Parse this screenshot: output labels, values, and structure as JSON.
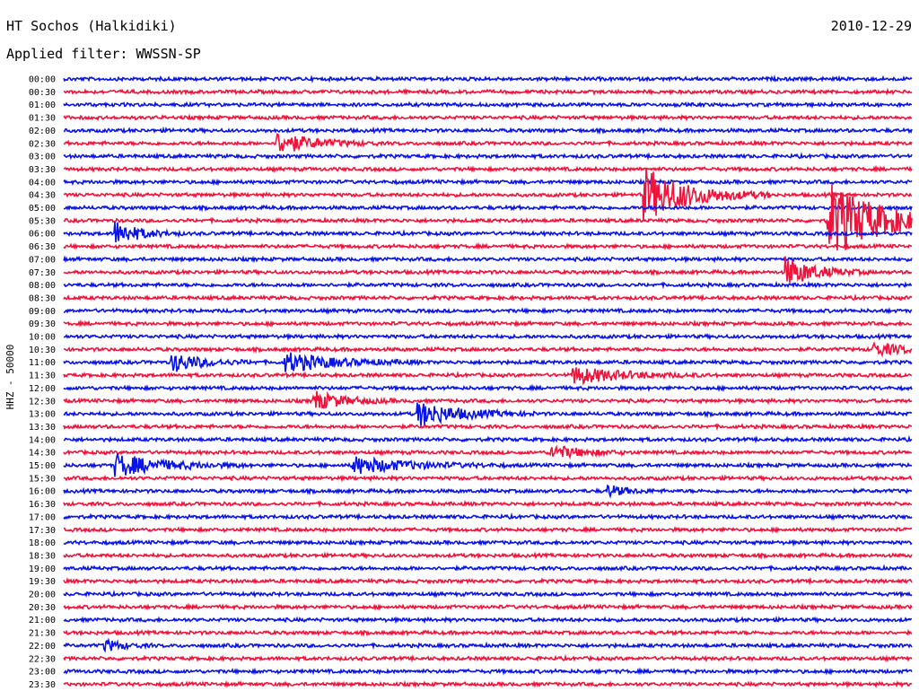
{
  "header": {
    "station": "HT Sochos (Halkidiki)",
    "date": "2010-12-29",
    "filter_prefix": "Applied filter:",
    "filter_name": "WWSSN-SP"
  },
  "channel_label": "HHZ - 50000",
  "colors": {
    "trace_even": "#0a14e6",
    "trace_odd": "#f0143c"
  },
  "chart_data": {
    "type": "line",
    "title": "",
    "xlabel": "",
    "ylabel": "HHZ - 50000",
    "grid": false,
    "row_labels": [
      "00:00",
      "00:30",
      "01:00",
      "01:30",
      "02:00",
      "02:30",
      "03:00",
      "03:30",
      "04:00",
      "04:30",
      "05:00",
      "05:30",
      "06:00",
      "06:30",
      "07:00",
      "07:30",
      "08:00",
      "08:30",
      "09:00",
      "09:30",
      "10:00",
      "10:30",
      "11:00",
      "11:30",
      "12:00",
      "12:30",
      "13:00",
      "13:30",
      "14:00",
      "14:30",
      "15:00",
      "15:30",
      "16:00",
      "16:30",
      "17:00",
      "17:30",
      "18:00",
      "18:30",
      "19:00",
      "19:30",
      "20:00",
      "20:30",
      "21:00",
      "21:30",
      "22:00",
      "22:30",
      "23:00",
      "23:30"
    ],
    "row_minutes": 30,
    "events": [
      {
        "row": "02:30",
        "minute": 7.5,
        "amplitude": 0.9,
        "duration": 1.2
      },
      {
        "row": "04:30",
        "minute": 20.5,
        "amplitude": 2.2,
        "duration": 1.5
      },
      {
        "row": "05:30",
        "minute": 27.0,
        "amplitude": 3.2,
        "duration": 1.8
      },
      {
        "row": "06:00",
        "minute": 1.8,
        "amplitude": 1.0,
        "duration": 0.8
      },
      {
        "row": "07:30",
        "minute": 25.5,
        "amplitude": 1.2,
        "duration": 1.0
      },
      {
        "row": "11:00",
        "minute": 3.8,
        "amplitude": 0.8,
        "duration": 1.0
      },
      {
        "row": "11:00",
        "minute": 7.8,
        "amplitude": 0.8,
        "duration": 1.6
      },
      {
        "row": "11:30",
        "minute": 18.0,
        "amplitude": 0.7,
        "duration": 1.6
      },
      {
        "row": "12:30",
        "minute": 8.8,
        "amplitude": 0.8,
        "duration": 1.0
      },
      {
        "row": "13:00",
        "minute": 12.5,
        "amplitude": 1.0,
        "duration": 1.4
      },
      {
        "row": "14:30",
        "minute": 17.2,
        "amplitude": 0.6,
        "duration": 1.0
      },
      {
        "row": "15:00",
        "minute": 1.8,
        "amplitude": 0.9,
        "duration": 1.6
      },
      {
        "row": "15:00",
        "minute": 10.2,
        "amplitude": 0.7,
        "duration": 1.8
      },
      {
        "row": "16:00",
        "minute": 19.2,
        "amplitude": 0.5,
        "duration": 0.6
      },
      {
        "row": "10:30",
        "minute": 28.6,
        "amplitude": 0.5,
        "duration": 1.2
      },
      {
        "row": "22:00",
        "minute": 1.4,
        "amplitude": 0.5,
        "duration": 0.6
      }
    ]
  }
}
